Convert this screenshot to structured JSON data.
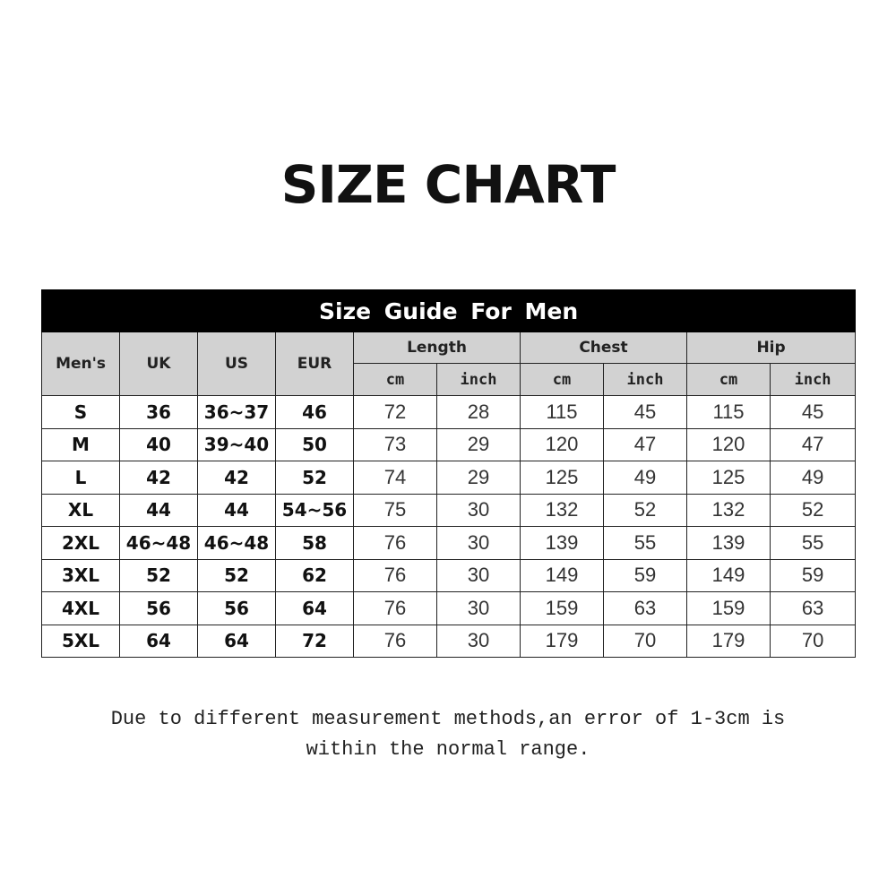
{
  "title": "SIZE CHART",
  "table": {
    "banner": "Size  Guide For  Men",
    "headers": {
      "mens": "Men's",
      "uk": "UK",
      "us": "US",
      "eur": "EUR",
      "length": "Length",
      "chest": "Chest",
      "hip": "Hip"
    },
    "units": [
      "cm",
      "inch",
      "cm",
      "inch",
      "cm",
      "inch"
    ],
    "rows": [
      [
        "S",
        "36",
        "36~37",
        "46",
        "72",
        "28",
        "115",
        "45",
        "115",
        "45"
      ],
      [
        "M",
        "40",
        "39~40",
        "50",
        "73",
        "29",
        "120",
        "47",
        "120",
        "47"
      ],
      [
        "L",
        "42",
        "42",
        "52",
        "74",
        "29",
        "125",
        "49",
        "125",
        "49"
      ],
      [
        "XL",
        "44",
        "44",
        "54~56",
        "75",
        "30",
        "132",
        "52",
        "132",
        "52"
      ],
      [
        "2XL",
        "46~48",
        "46~48",
        "58",
        "76",
        "30",
        "139",
        "55",
        "139",
        "55"
      ],
      [
        "3XL",
        "52",
        "52",
        "62",
        "76",
        "30",
        "149",
        "59",
        "149",
        "59"
      ],
      [
        "4XL",
        "56",
        "56",
        "64",
        "76",
        "30",
        "159",
        "63",
        "159",
        "63"
      ],
      [
        "5XL",
        "64",
        "64",
        "72",
        "76",
        "30",
        "179",
        "70",
        "179",
        "70"
      ]
    ]
  },
  "note": {
    "line1": "Due to different measurement methods,an error of 1-3cm is",
    "line2": "within the normal range."
  }
}
